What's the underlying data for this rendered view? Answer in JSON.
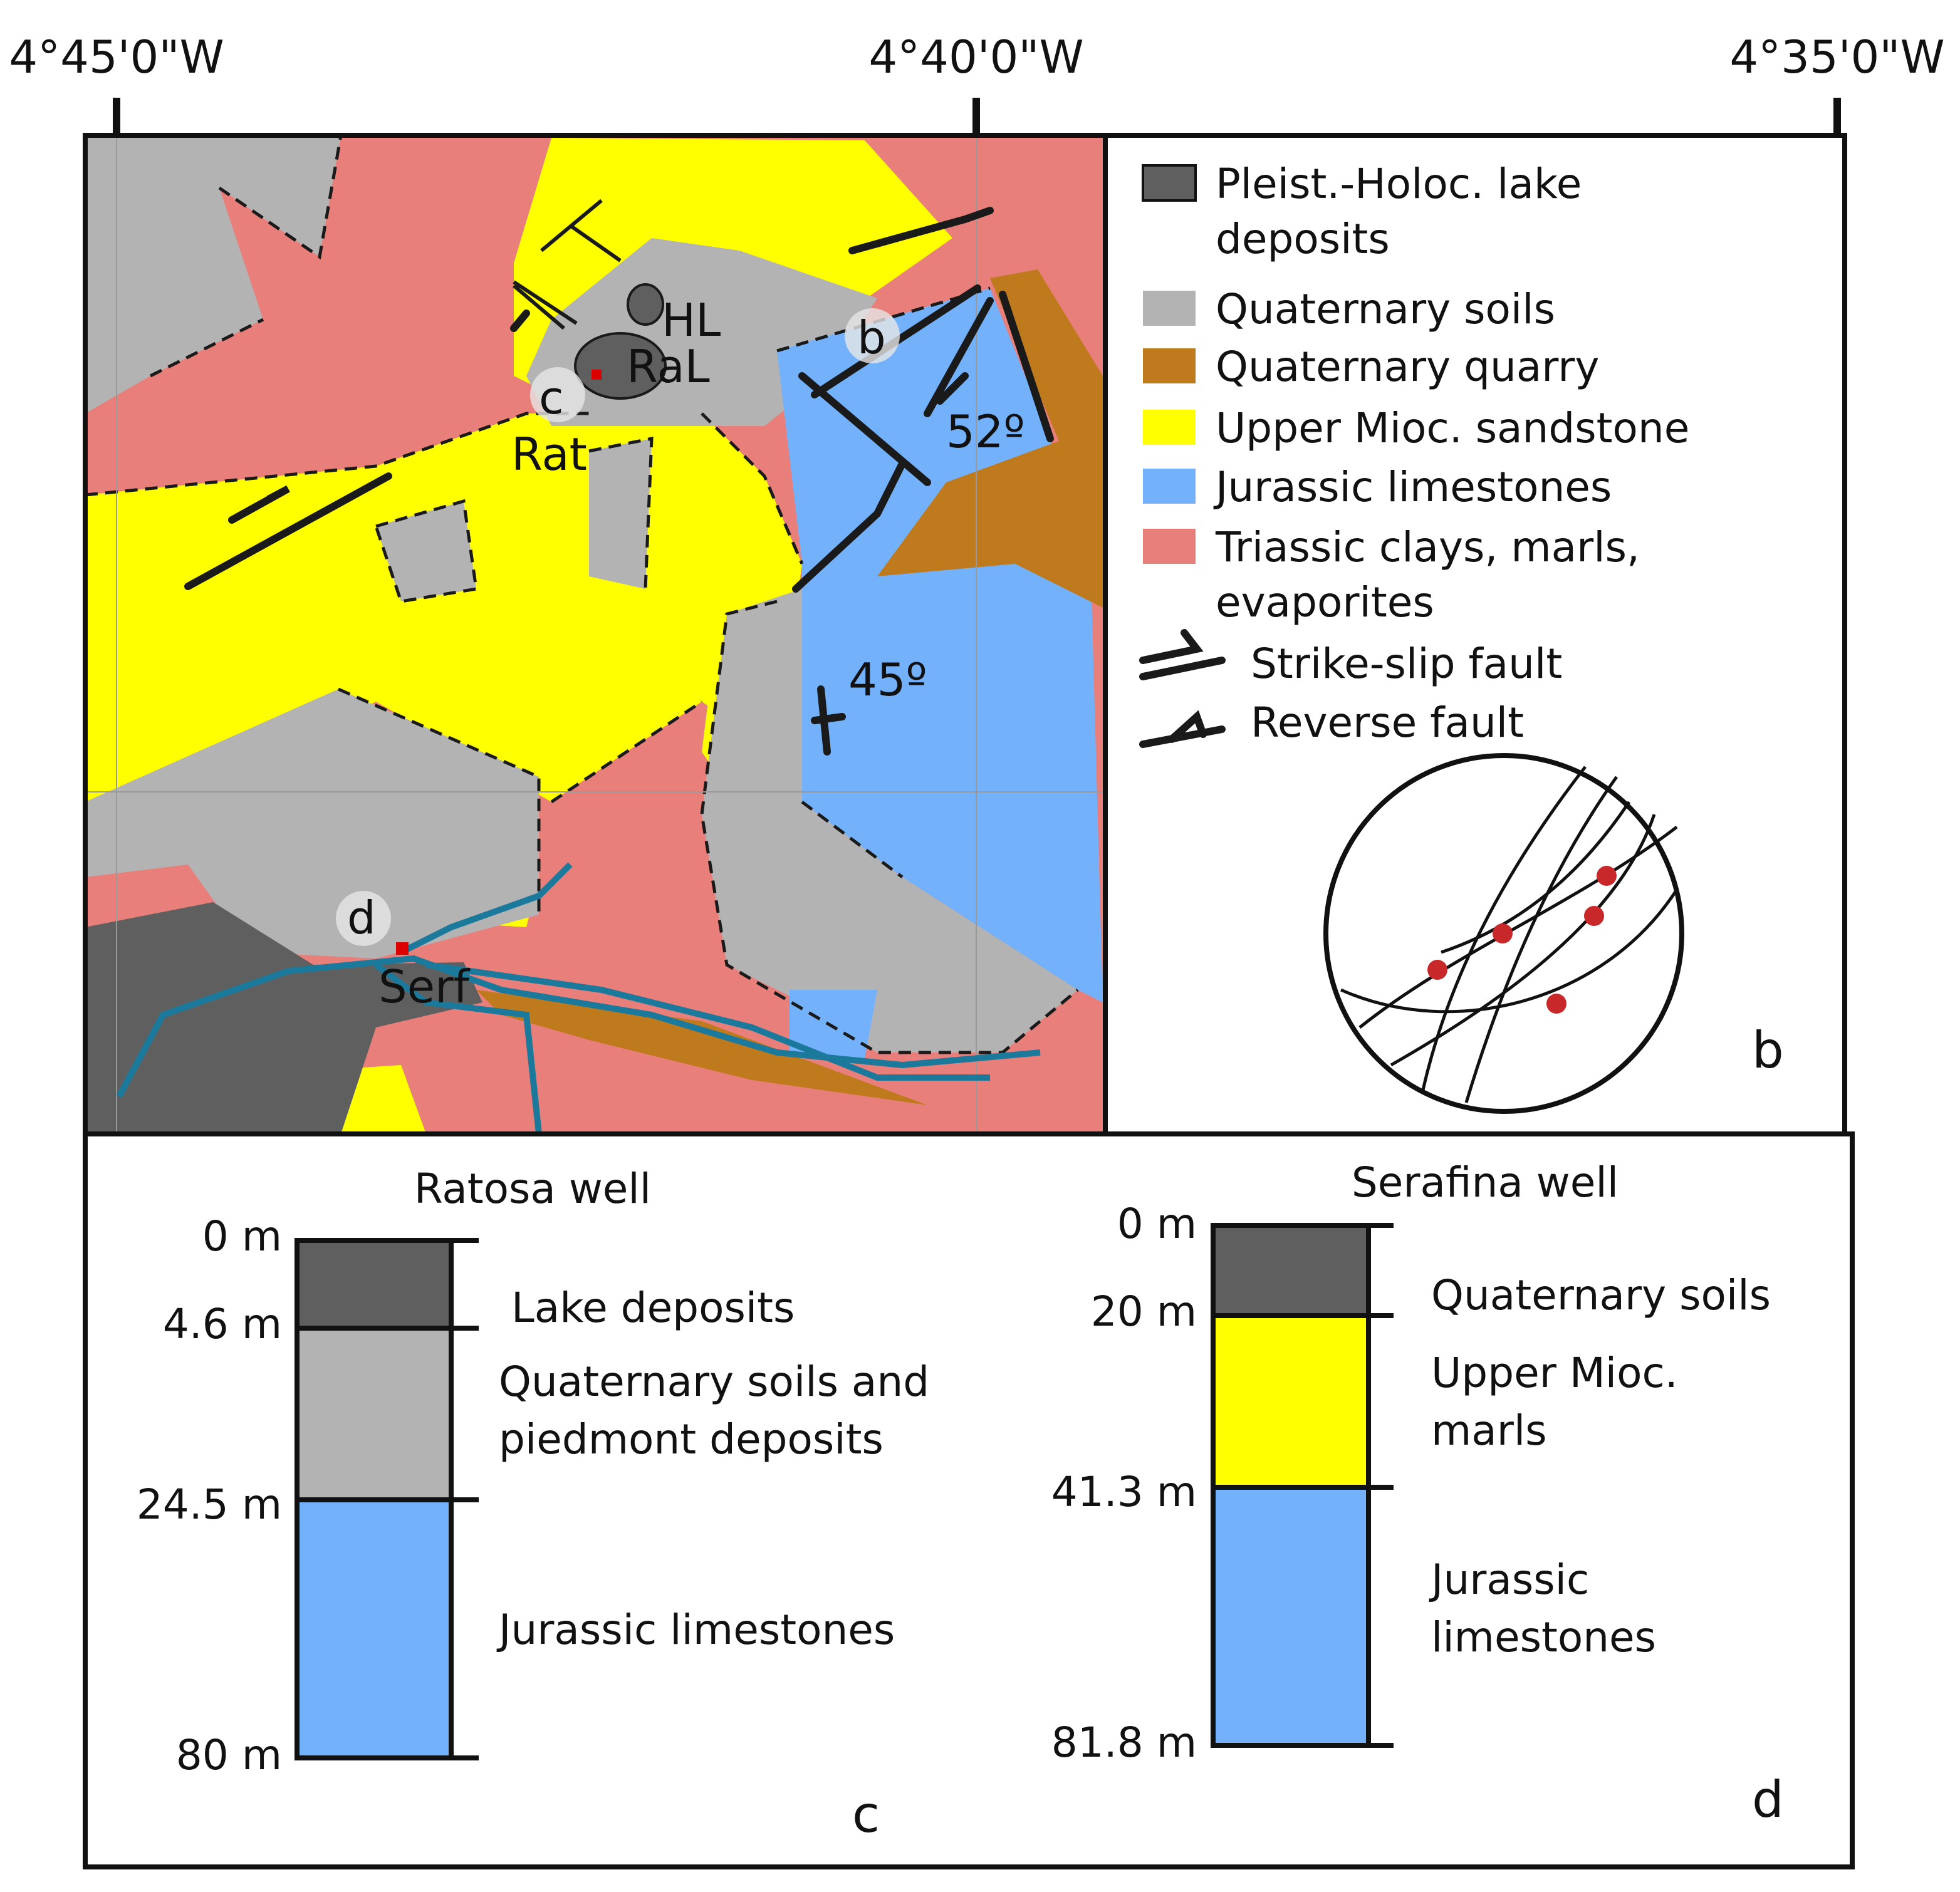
{
  "map": {
    "longitude_labels": [
      "4°45'0\"W",
      "4°40'0\"W",
      "4°35'0\"W"
    ],
    "labels": {
      "hl": "HL",
      "ral": "RaL",
      "rat": "Rat",
      "serf": "Serf",
      "site_b": "b",
      "site_c": "c",
      "site_d": "d",
      "dip_1": "52º",
      "dip_2": "45º"
    }
  },
  "legend": {
    "items": [
      {
        "lines": [
          "Pleist.-Holoc. lake",
          "deposits"
        ]
      },
      {
        "lines": [
          "Quaternary soils"
        ]
      },
      {
        "lines": [
          "Quaternary quarry"
        ]
      },
      {
        "lines": [
          "Upper Mioc. sandstone"
        ]
      },
      {
        "lines": [
          "Jurassic limestones"
        ]
      },
      {
        "lines": [
          "Triassic clays, marls,",
          "evaporites"
        ]
      },
      {
        "lines": [
          "Strike-slip fault"
        ]
      },
      {
        "lines": [
          "Reverse fault"
        ]
      }
    ]
  },
  "panels": {
    "b": "b",
    "c": "c",
    "d": "d"
  },
  "wells": [
    {
      "name": "Ratosa well",
      "depths": [
        "0 m",
        "4.6 m",
        "24.5 m",
        "80 m"
      ],
      "layers": [
        {
          "lines": [
            "Lake deposits"
          ]
        },
        {
          "lines": [
            "Quaternary soils and",
            "piedmont deposits"
          ]
        },
        {
          "lines": [
            "Jurassic limestones"
          ]
        }
      ]
    },
    {
      "name": "Serafina well",
      "depths": [
        "0 m",
        "20 m",
        "41.3 m",
        "81.8 m"
      ],
      "layers": [
        {
          "lines": [
            "Quaternary soils"
          ]
        },
        {
          "lines": [
            "Upper Mioc.",
            "marls"
          ]
        },
        {
          "lines": [
            "Jurassic",
            "limestones"
          ]
        }
      ]
    }
  ]
}
